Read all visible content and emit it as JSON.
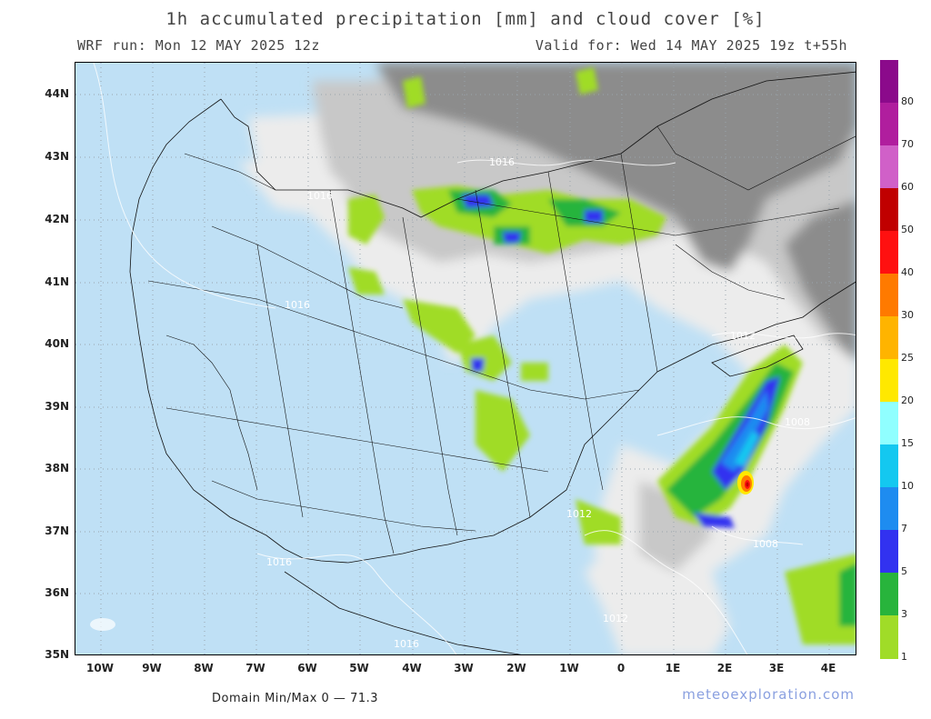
{
  "header": {
    "title": "1h accumulated precipitation [mm] and cloud cover [%]",
    "run": "WRF run: Mon 12 MAY 2025 12z",
    "valid": "Valid for: Wed 14 MAY 2025 19z  t+55h"
  },
  "axes": {
    "lat_labels": [
      "44N",
      "43N",
      "42N",
      "41N",
      "40N",
      "39N",
      "38N",
      "37N",
      "36N",
      "35N"
    ],
    "lon_labels": [
      "10W",
      "9W",
      "8W",
      "7W",
      "6W",
      "5W",
      "4W",
      "3W",
      "2W",
      "1W",
      "0",
      "1E",
      "2E",
      "3E",
      "4E"
    ]
  },
  "isobars": [
    "1016",
    "1016",
    "1016",
    "1016",
    "1016",
    "1012",
    "1012",
    "1012",
    "1008",
    "1008"
  ],
  "colorbar": {
    "labels": [
      "80",
      "70",
      "60",
      "50",
      "40",
      "30",
      "25",
      "20",
      "15",
      "10",
      "7",
      "5",
      "3",
      "1"
    ],
    "colors": [
      "#8b0a8b",
      "#b01e9e",
      "#d060c8",
      "#c00000",
      "#ff1010",
      "#ff7a00",
      "#ffb400",
      "#ffe800",
      "#90ffff",
      "#14c8f0",
      "#1e8cf0",
      "#3232f0",
      "#28b43c",
      "#a0dc28"
    ]
  },
  "footer": {
    "minmax": "Domain Min/Max 0 — 71.3",
    "brand": "meteoexploration.com"
  },
  "colors": {
    "sea": "#bfe0f5",
    "cloud_light": "#ececec",
    "cloud_mid": "#c8c8c8",
    "cloud_dark": "#8c8c8c",
    "precip_green_light": "#a0dc28",
    "precip_green": "#28b43c",
    "precip_blue": "#3232f0"
  }
}
